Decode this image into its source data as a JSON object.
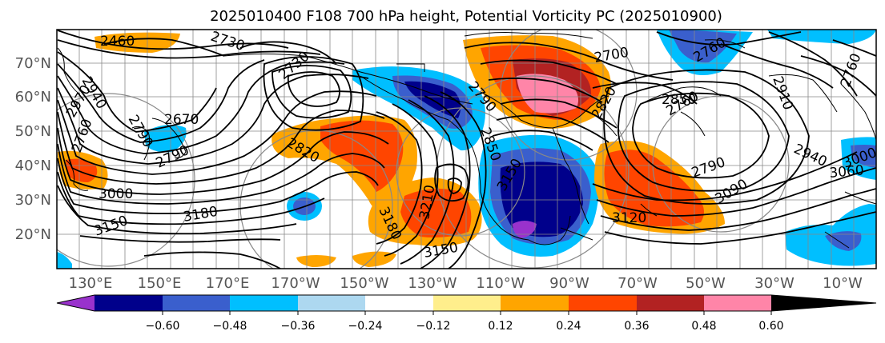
{
  "title": "2025010400 F108 700 hPa height, Potential Vorticity PC (2025010900)",
  "lat_labels": [
    "70°N",
    "60°N",
    "50°N",
    "40°N",
    "30°N",
    "20°N"
  ],
  "lon_labels": [
    "130°E",
    "150°E",
    "170°E",
    "170°W",
    "150°W",
    "130°W",
    "110°W",
    "90°W",
    "70°W",
    "50°W",
    "30°W",
    "10°W"
  ],
  "colorbar": {
    "ticks": [
      "−0.60",
      "−0.48",
      "−0.36",
      "−0.24",
      "−0.12",
      "0.12",
      "0.24",
      "0.36",
      "0.48",
      "0.60"
    ],
    "colors": [
      "#9932cc",
      "#00008b",
      "#3a5fcd",
      "#00bfff",
      "#add8f0",
      "#ffffff",
      "#ffee8c",
      "#ffa500",
      "#ff4500",
      "#b22222",
      "#ff85a8"
    ]
  },
  "contour_labels": [
    "2460",
    "2730",
    "2730",
    "2790",
    "2940",
    "2970",
    "2760",
    "2670",
    "2790",
    "3000",
    "2820",
    "3180",
    "3150",
    "3210",
    "3180",
    "3150",
    "2790",
    "2820",
    "2850",
    "2760",
    "2790",
    "2940",
    "3060",
    "3000",
    "3120",
    "3150",
    "2850",
    "2910",
    "2760",
    "2700",
    "3090",
    "2760"
  ]
}
